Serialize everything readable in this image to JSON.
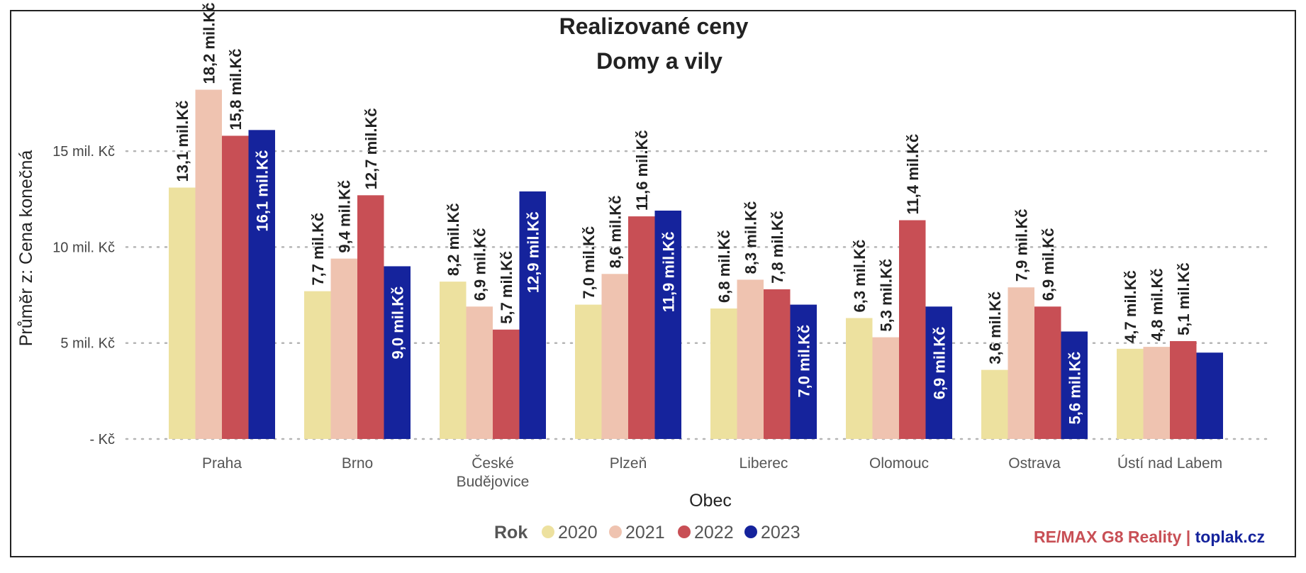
{
  "chart_data": {
    "type": "bar",
    "title": "Realizované ceny",
    "subtitle": "Domy a vily",
    "xlabel": "Obec",
    "ylabel": "Průměr z: Cena konečná",
    "ylim": [
      0,
      19.5
    ],
    "yticks": [
      {
        "value": 0,
        "label": "- Kč"
      },
      {
        "value": 5,
        "label": "5 mil. Kč"
      },
      {
        "value": 10,
        "label": "10 mil. Kč"
      },
      {
        "value": 15,
        "label": "15 mil. Kč"
      }
    ],
    "grid": true,
    "categories": [
      [
        "Praha"
      ],
      [
        "Brno"
      ],
      [
        "České",
        "Budějovice"
      ],
      [
        "Plzeň"
      ],
      [
        "Liberec"
      ],
      [
        "Olomouc"
      ],
      [
        "Ostrava"
      ],
      [
        "Ústí nad Labem"
      ]
    ],
    "legend_title": "Rok",
    "legend_position": "bottom",
    "series": [
      {
        "name": "2020",
        "color": "#ede19f",
        "values": [
          13.1,
          7.7,
          8.2,
          7.0,
          6.8,
          6.3,
          3.6,
          4.7
        ],
        "labels": [
          "13,1 mil.Kč",
          "7,7 mil.Kč",
          "8,2 mil.Kč",
          "7,0 mil.Kč",
          "6,8 mil.Kč",
          "6,3 mil.Kč",
          "3,6 mil.Kč",
          "4,7 mil.Kč"
        ]
      },
      {
        "name": "2021",
        "color": "#efc3b0",
        "values": [
          18.2,
          9.4,
          6.9,
          8.6,
          8.3,
          5.3,
          7.9,
          4.8
        ],
        "labels": [
          "18,2 mil.Kč",
          "9,4 mil.Kč",
          "6,9 mil.Kč",
          "8,6 mil.Kč",
          "8,3 mil.Kč",
          "5,3 mil.Kč",
          "7,9 mil.Kč",
          "4,8 mil.Kč"
        ]
      },
      {
        "name": "2022",
        "color": "#c84f55",
        "values": [
          15.8,
          12.7,
          5.7,
          11.6,
          7.8,
          11.4,
          6.9,
          5.1
        ],
        "labels": [
          "15,8 mil.Kč",
          "12,7 mil.Kč",
          "5,7 mil.Kč",
          "11,6 mil.Kč",
          "7,8 mil.Kč",
          "11,4 mil.Kč",
          "6,9 mil.Kč",
          "5,1 mil.Kč"
        ]
      },
      {
        "name": "2023",
        "color": "#15239c",
        "values": [
          16.1,
          9.0,
          12.9,
          11.9,
          7.0,
          6.9,
          5.6,
          4.5
        ],
        "labels": [
          "16,1 mil.Kč",
          "9,0 mil.Kč",
          "12,9 mil.Kč",
          "11,9 mil.Kč",
          "7,0 mil.Kč",
          "6,9 mil.Kč",
          "5,6 mil.Kč",
          ""
        ]
      }
    ]
  },
  "branding": {
    "part1": "RE/",
    "part2": "MAX G8 Reality | ",
    "part3": "toplak.cz",
    "color_red": "#c84f55",
    "color_blue": "#15239c"
  }
}
